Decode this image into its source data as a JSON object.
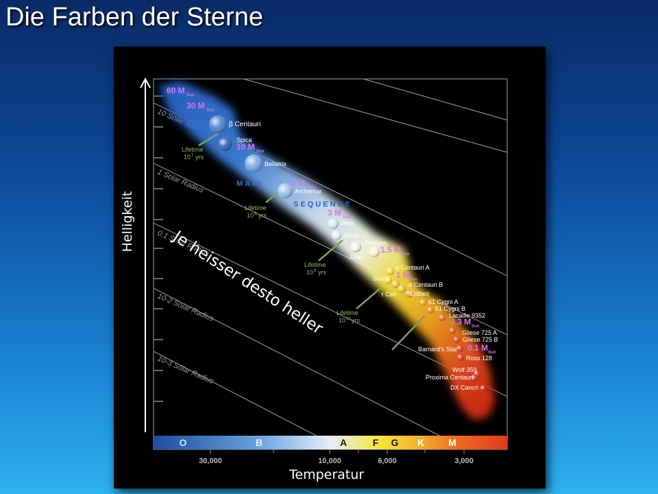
{
  "slide": {
    "title": "Die Farben der Sterne",
    "y_axis_label": "Helligkeit",
    "x_axis_label": "Temperatur",
    "annotation": "Je heisser desto heller"
  },
  "diagram": {
    "radius_lines": [
      "10 Solar Radii",
      "1 Solar Radius",
      "0,1 Solar Radius",
      "10-2 Solar Radius",
      "10-3 Solar Radius"
    ],
    "sequence_words": [
      "MAIN",
      "SEQUENCE"
    ],
    "spectral_classes": [
      "O",
      "B",
      "A",
      "F",
      "G",
      "K",
      "M"
    ],
    "temperature_ticks": [
      "30,000",
      "10,000",
      "6,000",
      "3,000"
    ],
    "mass_labels": [
      "60 M",
      "30 M",
      "10 M",
      "6 M",
      "3 M",
      "1.5 M",
      "1 M",
      "0.3 M",
      "0.1 M"
    ],
    "mass_subscript": "Sun",
    "lifetimes": [
      {
        "l1": "Lifetime",
        "l2": "10",
        "exp": "7",
        "unit": "yrs"
      },
      {
        "l1": "Lifetime",
        "l2": "10",
        "exp": "8",
        "unit": "yrs"
      },
      {
        "l1": "Lifetime",
        "l2": "10",
        "exp": "9",
        "unit": "yrs"
      },
      {
        "l1": "Lifetime",
        "l2": "10",
        "exp": "10",
        "unit": "yrs"
      }
    ],
    "stars": [
      {
        "name": "β Centauri",
        "color": "#4a7fd0"
      },
      {
        "name": "Spica",
        "color": "#2f5fb4"
      },
      {
        "name": "Bellatrix",
        "color": "#7aa6e6"
      },
      {
        "name": "Archernar",
        "color": "#9cc0ee"
      },
      {
        "name": "Vega",
        "color": "#d8e6f6"
      },
      {
        "name": "Sirius",
        "color": "#e4eef8"
      },
      {
        "name": "Altair",
        "color": "#f2f4ee"
      },
      {
        "name": "Procyon",
        "color": "#fbf6d8"
      },
      {
        "name": "α Centauri A",
        "color": "#f5dc3a"
      },
      {
        "name": "Sun",
        "color": "#f7e23a"
      },
      {
        "name": "α Centauri B",
        "color": "#f1c331"
      },
      {
        "name": "τ Ceti",
        "color": "#eec32c"
      },
      {
        "name": "Eridani",
        "color": "#eaa42a"
      },
      {
        "name": "61 Cygni A",
        "color": "#f0a21d"
      },
      {
        "name": "61 Cygni B",
        "color": "#ec8a1c"
      },
      {
        "name": "Lacaille 9352",
        "color": "#e66a18"
      },
      {
        "name": "Gliese 725 A",
        "color": "#e4521a"
      },
      {
        "name": "Gliese 725 B",
        "color": "#e04218"
      },
      {
        "name": "Barnard's Star",
        "color": "#dc3a18"
      },
      {
        "name": "Ross 128",
        "color": "#d93418"
      },
      {
        "name": "Wolf 359",
        "color": "#d5301a"
      },
      {
        "name": "Proxima Centauri",
        "color": "#d02c1a"
      },
      {
        "name": "DX Cancri",
        "color": "#cc2818"
      }
    ]
  }
}
